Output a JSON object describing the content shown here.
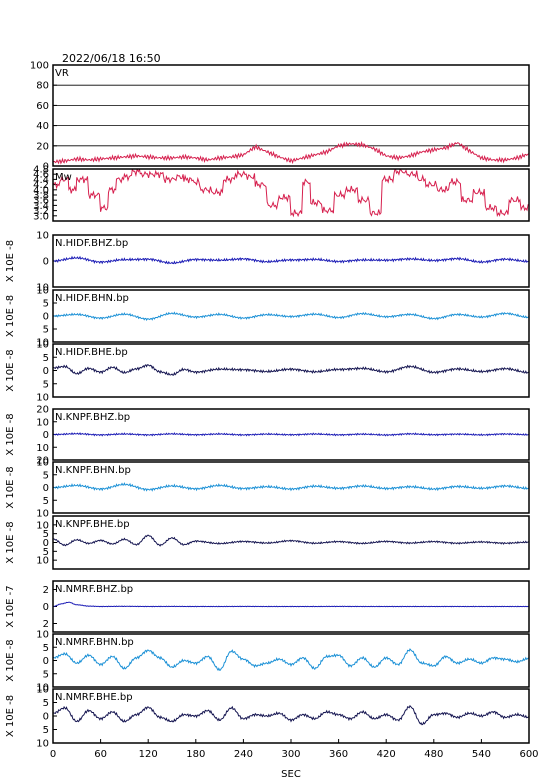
{
  "header": {
    "datetime": "2022/06/18  16:50"
  },
  "chart_data": {
    "type": "line",
    "xlabel": "SEC",
    "xlim": [
      0,
      600
    ],
    "xticks": [
      0,
      60,
      120,
      180,
      240,
      300,
      360,
      420,
      480,
      540,
      600
    ],
    "panels": [
      {
        "id": "vr",
        "label": "VR",
        "ylim": [
          0,
          100
        ],
        "yticks": [
          0,
          20,
          40,
          60,
          80,
          100
        ],
        "ytick_labels": [
          "0",
          "20",
          "40",
          "60",
          "80",
          "100"
        ],
        "grid": true,
        "ylabel": "",
        "color": "#d6204e",
        "style": "raw",
        "x": [
          0,
          15,
          30,
          45,
          60,
          75,
          90,
          105,
          120,
          135,
          150,
          165,
          180,
          195,
          210,
          225,
          240,
          255,
          270,
          285,
          300,
          315,
          330,
          345,
          360,
          375,
          390,
          405,
          420,
          435,
          450,
          465,
          480,
          495,
          510,
          525,
          540,
          555,
          570,
          585,
          600
        ],
        "y": [
          4,
          5,
          7,
          6,
          7,
          8,
          9,
          10,
          9,
          8,
          8,
          9,
          8,
          6,
          8,
          9,
          11,
          19,
          14,
          9,
          5,
          8,
          11,
          14,
          20,
          22,
          21,
          17,
          10,
          8,
          10,
          14,
          16,
          18,
          23,
          15,
          8,
          6,
          6,
          8,
          12
        ]
      },
      {
        "id": "mw",
        "label": "Mw",
        "ylim": [
          2.8,
          4.8
        ],
        "yticks": [
          3.0,
          3.2,
          3.4,
          3.6,
          3.8,
          4.0,
          4.2,
          4.4,
          4.6,
          4.8
        ],
        "ytick_labels": [
          "3.0",
          "3.2",
          "3.4",
          "3.6",
          "3.8",
          "4.0",
          "4.2",
          "4.4",
          "4.6",
          "4.8"
        ],
        "grid": false,
        "ylabel": "",
        "color": "#d6204e",
        "style": "step",
        "x": [
          0,
          10,
          20,
          30,
          45,
          60,
          70,
          80,
          90,
          100,
          110,
          125,
          140,
          155,
          165,
          175,
          185,
          200,
          215,
          230,
          245,
          255,
          270,
          285,
          300,
          315,
          325,
          340,
          355,
          370,
          385,
          400,
          415,
          430,
          445,
          460,
          470,
          485,
          500,
          515,
          530,
          545,
          560,
          575,
          590,
          600
        ],
        "y": [
          4.2,
          4.4,
          4.0,
          4.4,
          3.8,
          3.3,
          4.0,
          4.4,
          4.5,
          4.7,
          4.6,
          4.6,
          4.4,
          4.5,
          4.4,
          4.3,
          4.0,
          3.9,
          4.4,
          4.6,
          4.5,
          4.2,
          3.4,
          3.7,
          3.1,
          4.3,
          3.5,
          3.2,
          3.8,
          4.0,
          3.6,
          3.1,
          4.4,
          4.7,
          4.6,
          4.4,
          4.2,
          4.0,
          4.3,
          3.6,
          3.9,
          3.3,
          3.1,
          3.6,
          3.3,
          3.5
        ]
      },
      {
        "id": "hidf-bhz",
        "label": "N.HIDF.BHZ.bp",
        "ylim": [
          -10,
          10
        ],
        "yticks": [
          -10,
          0,
          10
        ],
        "ytick_labels": [
          "10",
          "0",
          "10"
        ],
        "grid": false,
        "ylabel": "X 10E -8",
        "color": "#1a1ab5",
        "style": "wave",
        "x": [
          0,
          30,
          60,
          90,
          120,
          150,
          180,
          210,
          240,
          270,
          300,
          330,
          360,
          390,
          420,
          450,
          480,
          510,
          540,
          570,
          600
        ],
        "y": [
          0,
          1.2,
          -0.4,
          0.5,
          0.7,
          -0.8,
          0.6,
          0.3,
          0.8,
          -0.3,
          0.4,
          0.6,
          -0.2,
          0.4,
          0.3,
          0.8,
          0.2,
          0.9,
          -0.4,
          0.7,
          -0.2
        ],
        "noise": 0.3
      },
      {
        "id": "hidf-bhn",
        "label": "N.HIDF.BHN.bp",
        "ylim": [
          -10,
          10
        ],
        "yticks": [
          -10,
          -5,
          0,
          5,
          10
        ],
        "ytick_labels": [
          "10",
          "5",
          "0",
          "5",
          "10"
        ],
        "grid": false,
        "ylabel": "X 10E -8",
        "color": "#1a90d6",
        "style": "wave",
        "x": [
          0,
          30,
          60,
          90,
          120,
          150,
          180,
          210,
          240,
          270,
          300,
          330,
          360,
          390,
          420,
          450,
          480,
          510,
          540,
          570,
          600
        ],
        "y": [
          0,
          0.6,
          -0.8,
          0.7,
          -1.2,
          1.0,
          -0.4,
          0.6,
          -0.8,
          0.5,
          -0.2,
          0.7,
          -0.6,
          0.9,
          -0.3,
          0.6,
          -1.0,
          0.6,
          -0.4,
          1.0,
          -0.5
        ],
        "noise": 0.25
      },
      {
        "id": "hidf-bhe",
        "label": "N.HIDF.BHE.bp",
        "ylim": [
          -10,
          10
        ],
        "yticks": [
          -10,
          -5,
          0,
          5,
          10
        ],
        "ytick_labels": [
          "10",
          "5",
          "0",
          "5",
          "10"
        ],
        "grid": false,
        "ylabel": "X 10E -8",
        "color": "#141450",
        "style": "wave",
        "x": [
          0,
          15,
          30,
          45,
          60,
          75,
          90,
          105,
          120,
          135,
          150,
          165,
          180,
          210,
          240,
          270,
          300,
          330,
          360,
          390,
          420,
          450,
          480,
          510,
          540,
          570,
          600
        ],
        "y": [
          1,
          1.5,
          -1.2,
          0.8,
          -0.6,
          1.2,
          -0.8,
          0.6,
          2.0,
          -0.5,
          -1.6,
          0.4,
          -0.6,
          0.5,
          0.3,
          -0.4,
          0.5,
          -0.5,
          0.4,
          0.8,
          -0.5,
          1.5,
          -0.7,
          0.6,
          -0.4,
          0.7,
          -0.8
        ],
        "noise": 0.3
      },
      {
        "id": "knpf-bhz",
        "label": "N.KNPF.BHZ.bp",
        "ylim": [
          -20,
          20
        ],
        "yticks": [
          -20,
          -10,
          0,
          10,
          20
        ],
        "ytick_labels": [
          "20",
          "10",
          "0",
          "10",
          "20"
        ],
        "grid": false,
        "ylabel": "X 10E -8",
        "color": "#1a1ab5",
        "style": "wave",
        "x": [
          0,
          30,
          60,
          90,
          120,
          150,
          180,
          210,
          240,
          270,
          300,
          330,
          360,
          390,
          420,
          450,
          480,
          510,
          540,
          570,
          600
        ],
        "y": [
          0,
          0.6,
          -0.3,
          0.4,
          -0.3,
          0.5,
          -0.2,
          0.4,
          -0.3,
          0.3,
          -0.2,
          0.4,
          -0.3,
          0.3,
          -0.4,
          0.5,
          -0.2,
          0.3,
          -0.3,
          0.4,
          -0.2
        ],
        "noise": 0.4
      },
      {
        "id": "knpf-bhn",
        "label": "N.KNPF.BHN.bp",
        "ylim": [
          -10,
          10
        ],
        "yticks": [
          -10,
          -5,
          0,
          5,
          10
        ],
        "ytick_labels": [
          "10",
          "5",
          "0",
          "5",
          "10"
        ],
        "grid": false,
        "ylabel": "X 10E -8",
        "color": "#1a90d6",
        "style": "wave",
        "x": [
          0,
          30,
          60,
          90,
          120,
          150,
          180,
          210,
          240,
          270,
          300,
          330,
          360,
          390,
          420,
          450,
          480,
          510,
          540,
          570,
          600
        ],
        "y": [
          0,
          0.8,
          -0.6,
          1.2,
          -0.8,
          0.6,
          -0.5,
          0.8,
          -0.4,
          0.3,
          -0.6,
          0.5,
          -0.3,
          0.6,
          -0.4,
          0.3,
          -0.6,
          0.4,
          -0.3,
          0.6,
          -0.4
        ],
        "noise": 0.3
      },
      {
        "id": "knpf-bhe",
        "label": "N.KNPF.BHE.bp",
        "ylim": [
          -15,
          15
        ],
        "yticks": [
          -10,
          -5,
          0,
          5,
          10
        ],
        "ytick_labels": [
          "10",
          "5",
          "0",
          "5",
          "10"
        ],
        "grid": false,
        "ylabel": "X 10E -8",
        "color": "#141450",
        "style": "wave",
        "x": [
          0,
          15,
          30,
          45,
          60,
          75,
          90,
          105,
          120,
          135,
          150,
          165,
          180,
          210,
          240,
          270,
          300,
          330,
          360,
          390,
          420,
          450,
          480,
          510,
          540,
          570,
          600
        ],
        "y": [
          2,
          -1.5,
          1.5,
          -0.5,
          1.2,
          -0.8,
          1.8,
          -1.2,
          4.0,
          -1.5,
          2.6,
          -1.2,
          0.8,
          -0.6,
          0.6,
          -0.3,
          1.0,
          -0.4,
          0.5,
          -0.5,
          0.6,
          -0.3,
          0.5,
          -0.4,
          0.3,
          -0.4,
          0.2
        ],
        "noise": 0.3
      },
      {
        "id": "nmrf-bhz",
        "label": "N.NMRF.BHZ.bp",
        "ylim": [
          -3,
          3
        ],
        "yticks": [
          -2,
          0,
          2
        ],
        "ytick_labels": [
          "2",
          "0",
          "2"
        ],
        "grid": false,
        "ylabel": "X 10E -7",
        "color": "#1a1ab5",
        "style": "wave",
        "x": [
          0,
          10,
          20,
          30,
          45,
          60,
          90,
          120,
          150,
          180,
          210,
          240,
          270,
          300,
          330,
          360,
          390,
          420,
          450,
          480,
          510,
          540,
          570,
          600
        ],
        "y": [
          0,
          0.3,
          0.5,
          0.2,
          0.05,
          0.0,
          0.02,
          0.0,
          0.01,
          0.0,
          0.0,
          0.01,
          0.0,
          0.0,
          0.0,
          0.01,
          0.0,
          0.0,
          0.0,
          0.0,
          0.0,
          0.0,
          0.0,
          0.0
        ],
        "noise": 0.02
      },
      {
        "id": "nmrf-bhn",
        "label": "N.NMRF.BHN.bp",
        "ylim": [
          -10,
          10
        ],
        "yticks": [
          -10,
          -5,
          0,
          5,
          10
        ],
        "ytick_labels": [
          "10",
          "5",
          "0",
          "5",
          "10"
        ],
        "grid": false,
        "ylabel": "X 10E -8",
        "color": "#1a90d6",
        "style": "wave",
        "x": [
          0,
          15,
          30,
          45,
          60,
          75,
          90,
          105,
          120,
          135,
          150,
          165,
          180,
          195,
          210,
          225,
          240,
          255,
          270,
          285,
          300,
          315,
          330,
          345,
          360,
          375,
          390,
          405,
          420,
          435,
          450,
          465,
          480,
          495,
          510,
          525,
          540,
          555,
          570,
          585,
          600
        ],
        "y": [
          1,
          2.5,
          -1,
          2,
          -1.5,
          1.5,
          -3,
          1,
          3.8,
          1,
          -2.5,
          0,
          -1,
          1.5,
          -3.5,
          3.5,
          0.5,
          -2,
          -1,
          0.5,
          -1.5,
          1,
          -3,
          1.5,
          2,
          -2,
          1,
          -2.5,
          1,
          -1.5,
          4,
          -1,
          -2,
          1.5,
          -1,
          0.5,
          -1,
          1,
          0.5,
          -0.5,
          0.8
        ],
        "noise": 0.3
      },
      {
        "id": "nmrf-bhe",
        "label": "N.NMRF.BHE.bp",
        "ylim": [
          -10,
          10
        ],
        "yticks": [
          -10,
          -5,
          0,
          5,
          10
        ],
        "ytick_labels": [
          "10",
          "5",
          "0",
          "5",
          "10"
        ],
        "grid": false,
        "ylabel": "X 10E -8",
        "color": "#141450",
        "style": "wave",
        "x": [
          0,
          15,
          30,
          45,
          60,
          75,
          90,
          105,
          120,
          135,
          150,
          165,
          180,
          195,
          210,
          225,
          240,
          255,
          270,
          285,
          300,
          315,
          330,
          345,
          360,
          375,
          390,
          405,
          420,
          435,
          450,
          465,
          480,
          495,
          510,
          525,
          540,
          555,
          570,
          585,
          600
        ],
        "y": [
          1,
          3,
          -2,
          2,
          -1,
          1.5,
          -2,
          0.5,
          3.2,
          -0.5,
          -2,
          0.5,
          0,
          2,
          -1.5,
          3,
          -1,
          0.5,
          0,
          1,
          -1.5,
          0.5,
          -1,
          1.5,
          0.5,
          -1,
          1.5,
          -1,
          0.5,
          -1.5,
          3.5,
          -3,
          0.5,
          1,
          -0.5,
          1,
          0,
          1.5,
          -0.5,
          0.5,
          -0.5
        ],
        "noise": 0.3
      }
    ]
  }
}
